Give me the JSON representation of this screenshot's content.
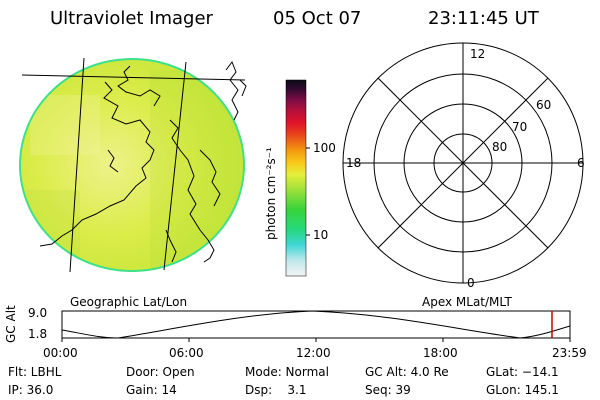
{
  "header": {
    "title": "Ultraviolet Imager",
    "date": "05 Oct 07",
    "time": "23:11:45 UT"
  },
  "map_panel": {
    "label": "Geographic Lat/Lon",
    "colors": {
      "fill": "#dcec4a",
      "rim": "#3fe08a"
    }
  },
  "colorbar": {
    "unit_label": "photon cm⁻²s⁻¹",
    "tick_labels": [
      "100",
      "10"
    ]
  },
  "polar_panel": {
    "label": "Apex MLat/MLT",
    "mlt_labels": {
      "top": "12",
      "left": "18",
      "right": "6",
      "bottom": "0"
    },
    "lat_labels": [
      "60",
      "70",
      "80"
    ]
  },
  "timeline": {
    "y_axis_label": "GC Alt",
    "y_ticks": [
      "9.0",
      "1.8"
    ],
    "x_ticks": [
      "00:00",
      "06:00",
      "12:00",
      "18:00",
      "23:59"
    ],
    "marker_color": "#cc0000"
  },
  "status": {
    "filter": "Flt: LBHL",
    "door": "Door: Open",
    "mode": "Mode: Normal",
    "gc_alt": "GC Alt: 4.0 Re",
    "glat": "GLat: −14.1",
    "ip": "IP: 36.0",
    "gain": "Gain: 14",
    "dsp": "Dsp:    3.1",
    "seq": "Seq: 39",
    "glon": "GLon: 145.1"
  }
}
